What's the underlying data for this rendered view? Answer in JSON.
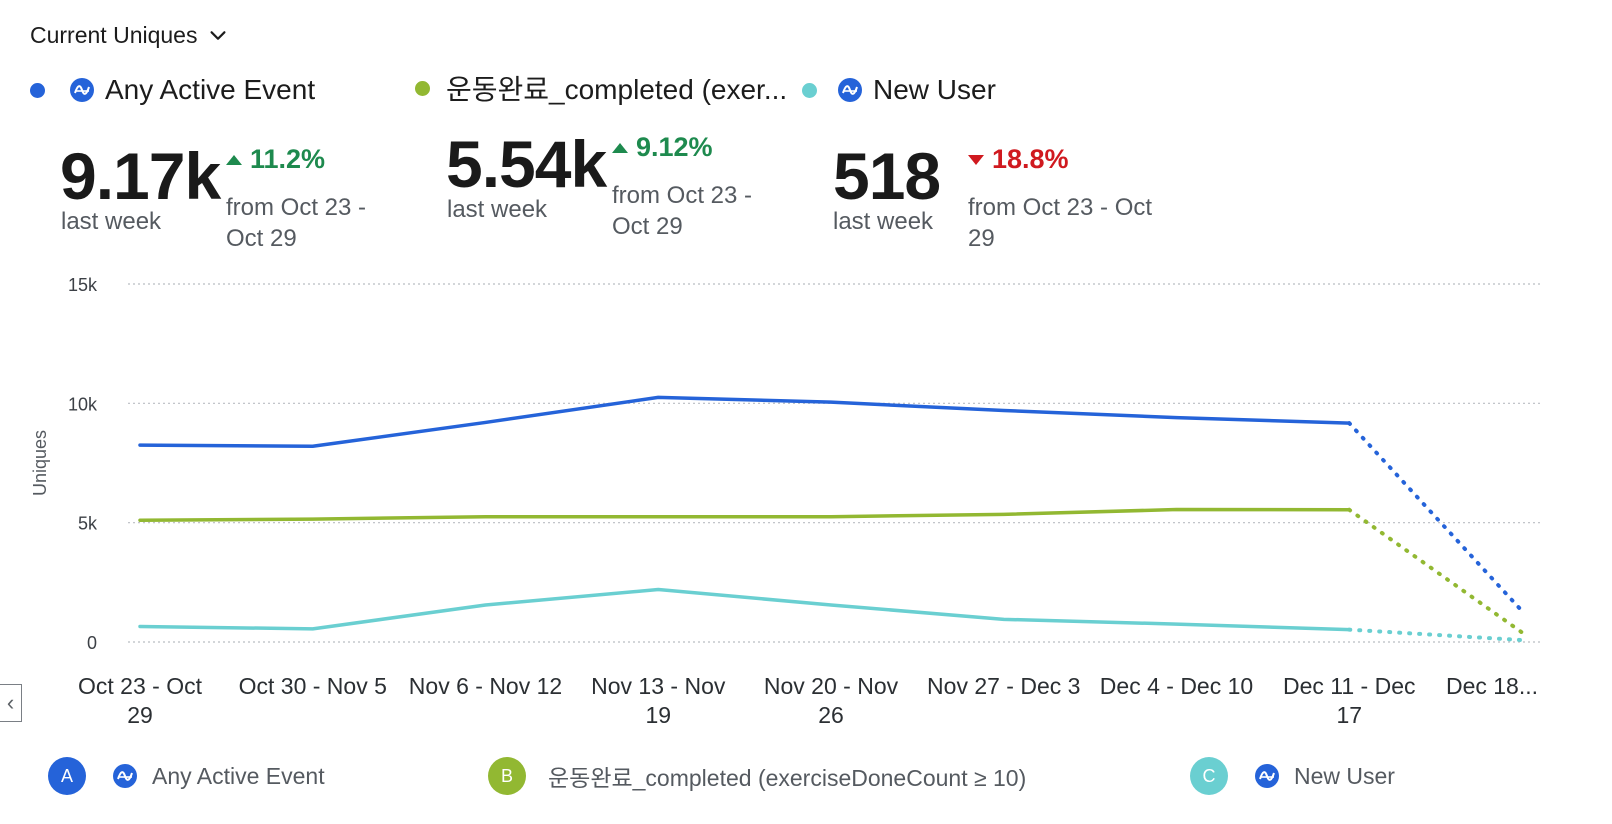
{
  "header": {
    "metric_label": "Current Uniques"
  },
  "legend_top": [
    {
      "label": "Any Active Event",
      "color": "#2563d9",
      "icon": "amplitude-icon"
    },
    {
      "label": "운동완료_completed (exer...",
      "color": "#92b832",
      "icon": "none"
    },
    {
      "label": "New User",
      "color": "#6acfd1",
      "icon": "amplitude-icon"
    }
  ],
  "kpis": [
    {
      "value": "9.17k",
      "label": "last week",
      "change": "11.2%",
      "direction": "up",
      "range_line1": "from Oct 23 -",
      "range_line2": "Oct 29"
    },
    {
      "value": "5.54k",
      "label": "last week",
      "change": "9.12%",
      "direction": "up",
      "range_line1": "from Oct 23 -",
      "range_line2": "Oct 29"
    },
    {
      "value": "518",
      "label": "last week",
      "change": "18.8%",
      "direction": "down",
      "range_line1": "from Oct 23 - Oct",
      "range_line2": "29"
    }
  ],
  "chart_data": {
    "type": "line",
    "ylabel": "Uniques",
    "ylim": [
      0,
      15000
    ],
    "yticks": [
      0,
      5000,
      10000,
      15000
    ],
    "ytick_labels": [
      "0",
      "5k",
      "10k",
      "15k"
    ],
    "grid": true,
    "categories": [
      [
        "Oct 23 - Oct",
        "29"
      ],
      [
        "Oct 30 - Nov 5"
      ],
      [
        "Nov 6 - Nov 12"
      ],
      [
        "Nov 13 - Nov",
        "19"
      ],
      [
        "Nov 20 - Nov",
        "26"
      ],
      [
        "Nov 27 - Dec 3"
      ],
      [
        "Dec 4 - Dec 10"
      ],
      [
        "Dec 11 - Dec",
        "17"
      ],
      [
        "Dec 18..."
      ]
    ],
    "incomplete_from_index": 7,
    "series": [
      {
        "name": "Any Active Event",
        "color": "#2563d9",
        "values": [
          8250,
          8200,
          9200,
          10250,
          10050,
          9700,
          9400,
          9170,
          1300
        ]
      },
      {
        "name": "운동완료_completed (exerciseDoneCount ≥ 10)",
        "color": "#92b832",
        "values": [
          5100,
          5150,
          5250,
          5250,
          5250,
          5350,
          5550,
          5540,
          400
        ]
      },
      {
        "name": "New User",
        "color": "#6acfd1",
        "values": [
          650,
          550,
          1550,
          2200,
          1550,
          950,
          750,
          518,
          80
        ]
      }
    ]
  },
  "legend_bottom": [
    {
      "badge": "A",
      "label": "Any Active Event",
      "color": "#2563d9",
      "icon": "amplitude-icon"
    },
    {
      "badge": "B",
      "label": "운동완료_completed (exerciseDoneCount ≥ 10)",
      "color": "#92b832",
      "icon": "none"
    },
    {
      "badge": "C",
      "label": "New User",
      "color": "#6acfd1",
      "icon": "amplitude-icon"
    }
  ],
  "nav": {
    "left_arrow": "‹"
  }
}
